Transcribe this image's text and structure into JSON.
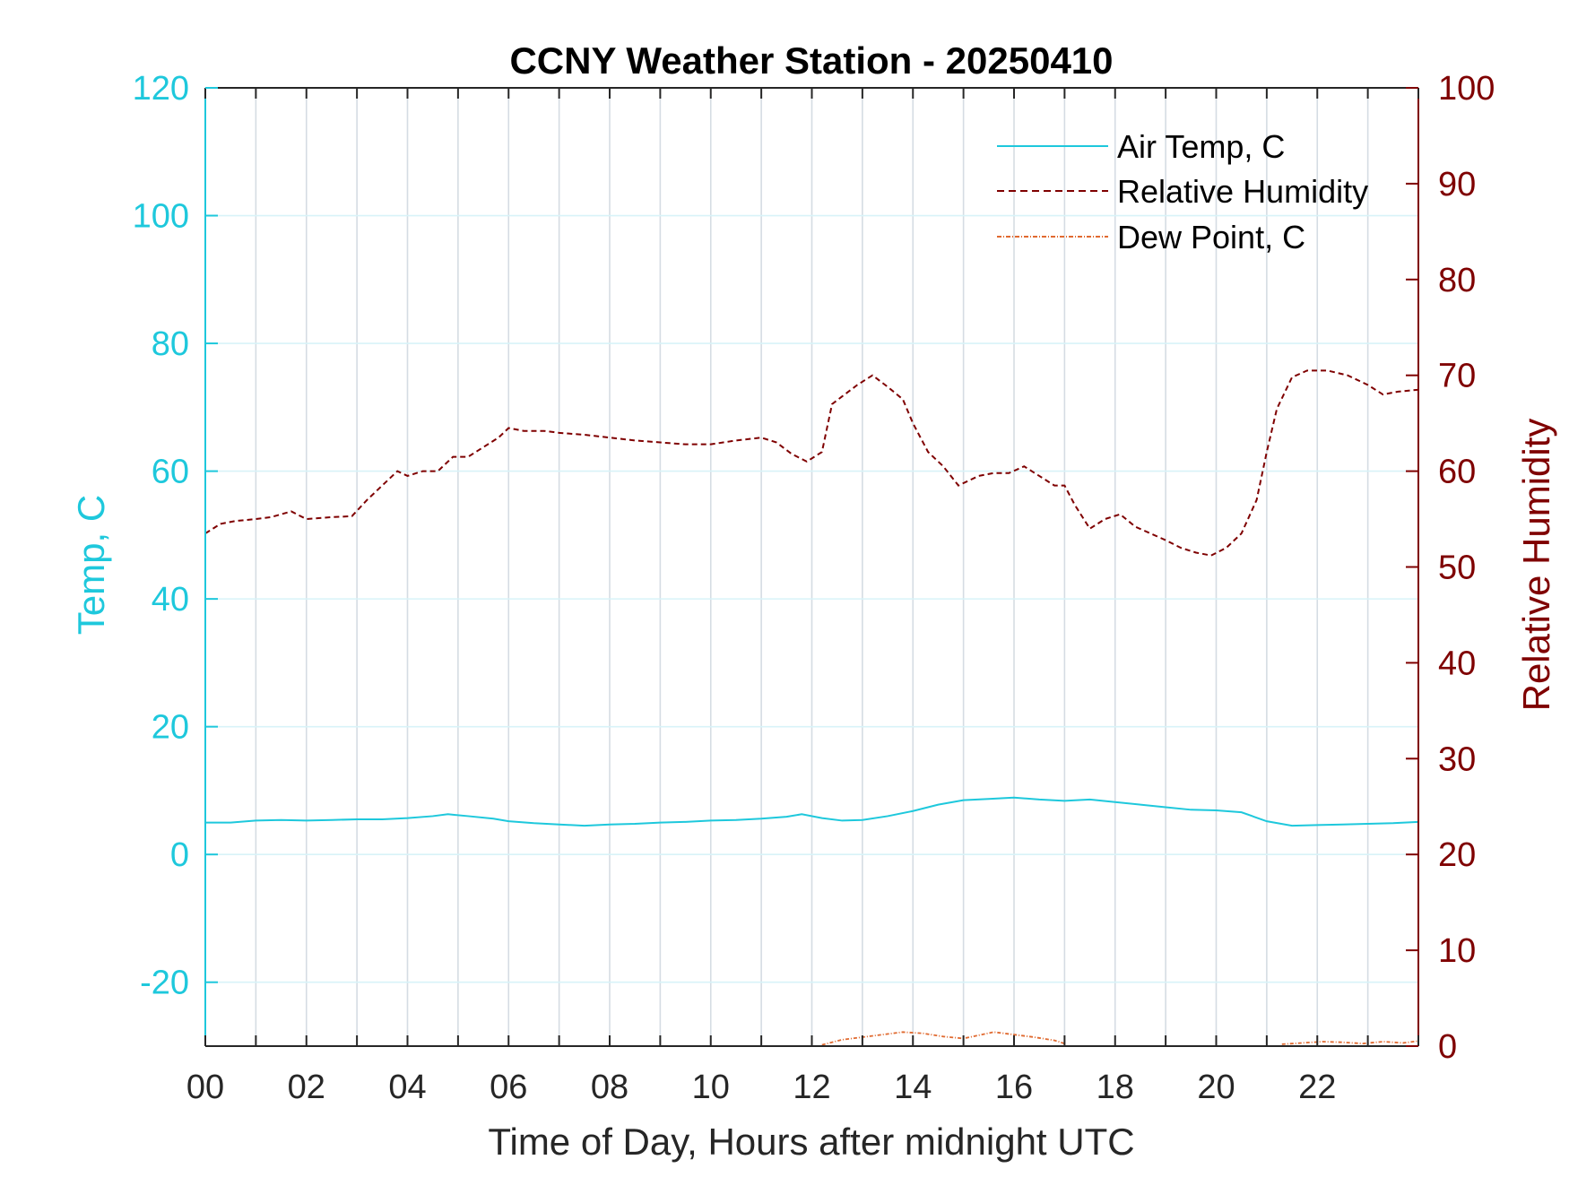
{
  "chart_data": {
    "type": "line",
    "title": "CCNY Weather Station - 20250410",
    "xlabel": "Time of Day, Hours after midnight UTC",
    "ylabel_left": "Temp, C",
    "ylabel_right": "Relative Humidity",
    "xlim": [
      0,
      24
    ],
    "ylim_left": [
      -30,
      120
    ],
    "ylim_right": [
      0,
      100
    ],
    "x_ticks": [
      0,
      2,
      4,
      6,
      8,
      10,
      12,
      14,
      16,
      18,
      20,
      22
    ],
    "x_tick_labels": [
      "00",
      "02",
      "04",
      "06",
      "08",
      "10",
      "12",
      "14",
      "16",
      "18",
      "20",
      "22"
    ],
    "y_left_ticks": [
      -20,
      0,
      20,
      40,
      60,
      80,
      100,
      120
    ],
    "y_left_tick_labels": [
      "-20",
      "0",
      "20",
      "40",
      "60",
      "80",
      "100",
      "120"
    ],
    "y_right_ticks": [
      0,
      10,
      20,
      30,
      40,
      50,
      60,
      70,
      80,
      90,
      100
    ],
    "y_right_tick_labels": [
      "0",
      "10",
      "20",
      "30",
      "40",
      "50",
      "60",
      "70",
      "80",
      "90",
      "100"
    ],
    "grid": true,
    "legend_position": "top-right",
    "colors": {
      "temp": "#1ec8dc",
      "rh": "#7f0000",
      "dew": "#e06a30",
      "grid_vertical": "#d5dce3",
      "grid_horizontal": "#d8f3f8",
      "axis_dark": "#262626"
    },
    "series": [
      {
        "name": "Air Temp, C",
        "axis": "left",
        "style": "solid",
        "x": [
          0,
          0.5,
          1,
          1.5,
          2,
          2.5,
          3,
          3.5,
          4,
          4.5,
          4.8,
          5.2,
          5.7,
          6,
          6.5,
          7,
          7.5,
          8,
          8.5,
          9,
          9.5,
          10,
          10.5,
          11,
          11.5,
          11.8,
          12.2,
          12.6,
          13,
          13.5,
          14,
          14.5,
          15,
          15.5,
          16,
          16.5,
          17,
          17.5,
          18,
          18.5,
          19,
          19.5,
          20,
          20.5,
          21,
          21.5,
          22,
          22.5,
          23,
          23.5,
          24
        ],
        "values": [
          5,
          5,
          5.3,
          5.4,
          5.3,
          5.4,
          5.5,
          5.5,
          5.7,
          6.0,
          6.3,
          6.0,
          5.6,
          5.2,
          4.9,
          4.7,
          4.5,
          4.7,
          4.8,
          5.0,
          5.1,
          5.3,
          5.4,
          5.6,
          5.9,
          6.3,
          5.7,
          5.3,
          5.4,
          6.0,
          6.8,
          7.8,
          8.5,
          8.7,
          8.9,
          8.6,
          8.4,
          8.6,
          8.2,
          7.8,
          7.4,
          7.0,
          6.9,
          6.6,
          5.2,
          4.5,
          4.6,
          4.7,
          4.8,
          4.9,
          5.1
        ]
      },
      {
        "name": "Relative Humidity",
        "axis": "right",
        "style": "dashed",
        "x": [
          0,
          0.3,
          0.6,
          1,
          1.3,
          1.7,
          2,
          2.5,
          2.9,
          3.2,
          3.5,
          3.8,
          4,
          4.3,
          4.6,
          4.9,
          5.2,
          5.5,
          5.8,
          6,
          6.3,
          6.7,
          7,
          7.5,
          8,
          8.5,
          9,
          9.5,
          10,
          10.5,
          11,
          11.3,
          11.6,
          11.9,
          12.2,
          12.4,
          12.6,
          12.9,
          13.2,
          13.5,
          13.8,
          14,
          14.3,
          14.6,
          14.9,
          15.1,
          15.3,
          15.6,
          15.9,
          16.2,
          16.5,
          16.8,
          17,
          17.2,
          17.5,
          17.8,
          18.1,
          18.4,
          18.7,
          19,
          19.3,
          19.6,
          19.9,
          20.2,
          20.5,
          20.8,
          21,
          21.2,
          21.5,
          21.8,
          22.2,
          22.6,
          23,
          23.3,
          23.6,
          24
        ],
        "values": [
          53.5,
          54.5,
          54.8,
          55,
          55.2,
          55.8,
          55,
          55.2,
          55.3,
          57,
          58.5,
          60,
          59.5,
          60,
          60,
          61.5,
          61.5,
          62.5,
          63.5,
          64.5,
          64.2,
          64.2,
          64,
          63.8,
          63.5,
          63.2,
          63,
          62.8,
          62.8,
          63.2,
          63.5,
          63,
          61.8,
          61,
          62,
          67,
          67.8,
          69,
          70,
          68.8,
          67.5,
          65,
          62,
          60.5,
          58.5,
          59,
          59.5,
          59.8,
          59.8,
          60.5,
          59.5,
          58.5,
          58.5,
          56.5,
          54,
          55,
          55.5,
          54.2,
          53.5,
          52.8,
          52,
          51.5,
          51.2,
          52,
          53.5,
          57,
          62,
          66.5,
          69.8,
          70.5,
          70.5,
          70,
          69,
          68,
          68.3,
          68.5
        ]
      },
      {
        "name": "Dew Point, C",
        "axis": "left",
        "style": "dashdot",
        "segments": [
          {
            "x": [
              12.2,
              12.6,
              13,
              13.4,
              13.8,
              14.2,
              14.6,
              15,
              15.3,
              15.6,
              16,
              16.4,
              16.8,
              17
            ],
            "values": [
              -29.8,
              -29.0,
              -28.6,
              -28.2,
              -27.8,
              -28.0,
              -28.5,
              -28.8,
              -28.3,
              -27.8,
              -28.2,
              -28.6,
              -29.1,
              -29.6
            ]
          },
          {
            "x": [
              21.3,
              21.7,
              22.1,
              22.5,
              22.9,
              23.3,
              23.7,
              24
            ],
            "values": [
              -29.7,
              -29.5,
              -29.3,
              -29.4,
              -29.6,
              -29.3,
              -29.5,
              -29.2
            ]
          }
        ]
      }
    ]
  }
}
